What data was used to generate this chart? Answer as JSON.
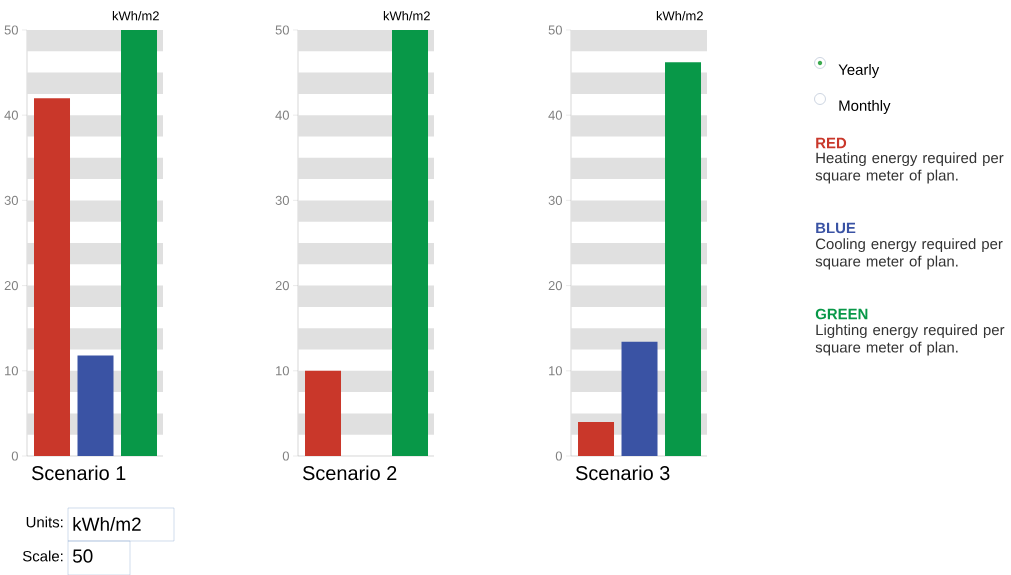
{
  "chart_data": [
    {
      "type": "bar",
      "xlabel": "Scenario 1",
      "ylabel": "kWh/m2",
      "categories": [
        null,
        null,
        null
      ],
      "values": [
        42,
        11.8,
        50
      ],
      "colors": [
        "#c9372a",
        "#3a53a4",
        "#089848"
      ],
      "ylim": [
        0,
        50
      ],
      "yticks": [
        0,
        10,
        20,
        30,
        40,
        50
      ],
      "bands": [
        {
          "axis": "y",
          "from": 2.5,
          "to": 5,
          "color": "#e0e0e0"
        },
        {
          "axis": "y",
          "from": 7.5,
          "to": 10,
          "color": "#e0e0e0"
        },
        {
          "axis": "y",
          "from": 12.5,
          "to": 15,
          "color": "#e0e0e0"
        },
        {
          "axis": "y",
          "from": 17.5,
          "to": 20,
          "color": "#e0e0e0"
        },
        {
          "axis": "y",
          "from": 22.5,
          "to": 25,
          "color": "#e0e0e0"
        },
        {
          "axis": "y",
          "from": 27.5,
          "to": 30,
          "color": "#e0e0e0"
        },
        {
          "axis": "y",
          "from": 32.5,
          "to": 35,
          "color": "#e0e0e0"
        },
        {
          "axis": "y",
          "from": 37.5,
          "to": 40,
          "color": "#e0e0e0"
        },
        {
          "axis": "y",
          "from": 42.5,
          "to": 45,
          "color": "#e0e0e0"
        },
        {
          "axis": "y",
          "from": 47.5,
          "to": 50,
          "color": "#e0e0e0"
        }
      ],
      "annotations": [
        "Units:",
        "kWh/m2",
        "Scale:",
        "50"
      ]
    },
    {
      "type": "bar",
      "xlabel": "Scenario 2",
      "ylabel": "kWh/m2",
      "categories": [
        null,
        null,
        null
      ],
      "values": [
        10,
        0,
        50
      ],
      "colors": [
        "#c9372a",
        "#3a53a4",
        "#089848"
      ],
      "ylim": [
        0,
        50
      ],
      "yticks": [
        0,
        10,
        20,
        30,
        40,
        50
      ],
      "bands": [
        {
          "axis": "y",
          "from": 2.5,
          "to": 5,
          "color": "#e0e0e0"
        },
        {
          "axis": "y",
          "from": 7.5,
          "to": 10,
          "color": "#e0e0e0"
        },
        {
          "axis": "y",
          "from": 12.5,
          "to": 15,
          "color": "#e0e0e0"
        },
        {
          "axis": "y",
          "from": 17.5,
          "to": 20,
          "color": "#e0e0e0"
        },
        {
          "axis": "y",
          "from": 22.5,
          "to": 25,
          "color": "#e0e0e0"
        },
        {
          "axis": "y",
          "from": 27.5,
          "to": 30,
          "color": "#e0e0e0"
        },
        {
          "axis": "y",
          "from": 32.5,
          "to": 35,
          "color": "#e0e0e0"
        },
        {
          "axis": "y",
          "from": 37.5,
          "to": 40,
          "color": "#e0e0e0"
        },
        {
          "axis": "y",
          "from": 42.5,
          "to": 45,
          "color": "#e0e0e0"
        },
        {
          "axis": "y",
          "from": 47.5,
          "to": 50,
          "color": "#e0e0e0"
        }
      ]
    },
    {
      "type": "bar",
      "xlabel": "Scenario 3",
      "ylabel": "kWh/m2",
      "categories": [
        null,
        null,
        null
      ],
      "values": [
        4,
        13.4,
        46.2
      ],
      "colors": [
        "#c9372a",
        "#3a53a4",
        "#089848"
      ],
      "ylim": [
        0,
        50
      ],
      "yticks": [
        0,
        10,
        20,
        30,
        40,
        50
      ],
      "bands": [
        {
          "axis": "y",
          "from": 2.5,
          "to": 5,
          "color": "#e0e0e0"
        },
        {
          "axis": "y",
          "from": 7.5,
          "to": 10,
          "color": "#e0e0e0"
        },
        {
          "axis": "y",
          "from": 12.5,
          "to": 15,
          "color": "#e0e0e0"
        },
        {
          "axis": "y",
          "from": 17.5,
          "to": 20,
          "color": "#e0e0e0"
        },
        {
          "axis": "y",
          "from": 22.5,
          "to": 25,
          "color": "#e0e0e0"
        },
        {
          "axis": "y",
          "from": 27.5,
          "to": 30,
          "color": "#e0e0e0"
        },
        {
          "axis": "y",
          "from": 32.5,
          "to": 35,
          "color": "#e0e0e0"
        },
        {
          "axis": "y",
          "from": 37.5,
          "to": 40,
          "color": "#e0e0e0"
        },
        {
          "axis": "y",
          "from": 42.5,
          "to": 45,
          "color": "#e0e0e0"
        },
        {
          "axis": "y",
          "from": 47.5,
          "to": 50,
          "color": "#e0e0e0"
        }
      ],
      "annotations": [
        "Yearly",
        "Monthly",
        "RED",
        "Heating energy required per square meter of plan.",
        "BLUE",
        "Cooling energy required per square meter of plan.",
        "GREEN",
        "Lighting energy required per square meter of plan."
      ]
    }
  ]
}
